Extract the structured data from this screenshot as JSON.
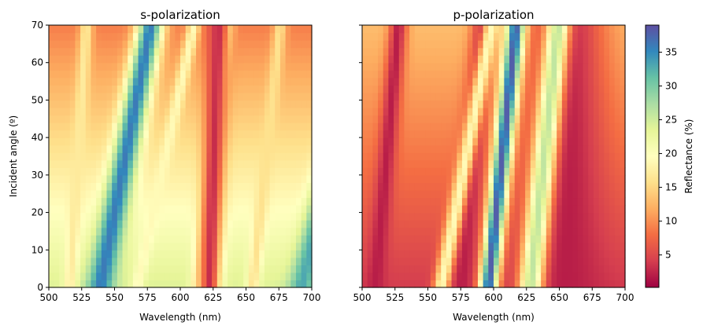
{
  "chart_data": [
    {
      "type": "heatmap",
      "title": "s-polarization",
      "xlabel": "Wavelength (nm)",
      "ylabel": "Incident angle (º)",
      "xlim": [
        500,
        700
      ],
      "ylim": [
        0,
        70
      ],
      "xticks": [
        500,
        525,
        550,
        575,
        600,
        625,
        650,
        675,
        700
      ],
      "yticks": [
        0,
        10,
        20,
        30,
        40,
        50,
        60,
        70
      ],
      "value_label": "Reflectance (%)",
      "bands": [
        {
          "kind": "valley",
          "lambda0": 516,
          "slope": 0.18,
          "value": 17,
          "width": 5
        },
        {
          "kind": "valley",
          "lambda0": 567,
          "slope": 0.62,
          "value": 19,
          "width": 5
        },
        {
          "kind": "valley",
          "lambda0": 612,
          "slope": 0.35,
          "value": 18,
          "width": 5
        },
        {
          "kind": "valley",
          "lambda0": 655,
          "slope": 0.3,
          "value": 16,
          "width": 5
        },
        {
          "kind": "peak",
          "lambda0": 539,
          "slope": 0.55,
          "value": 36,
          "width": 10
        },
        {
          "kind": "peak",
          "lambda0": 692,
          "slope": 0.7,
          "value": 33,
          "width": 10
        },
        {
          "kind": "peak",
          "lambda0": 622,
          "slope": 0.1,
          "value": 3,
          "width": 8
        }
      ],
      "base_value_low_angle": 24,
      "base_value_high_angle": 9
    },
    {
      "type": "heatmap",
      "title": "p-polarization",
      "xlabel": "Wavelength (nm)",
      "ylabel": "",
      "xlim": [
        500,
        700
      ],
      "ylim": [
        0,
        70
      ],
      "xticks": [
        500,
        525,
        550,
        575,
        600,
        625,
        650,
        675,
        700
      ],
      "yticks": [
        0,
        10,
        20,
        30,
        40,
        50,
        60,
        70
      ],
      "value_label": "Reflectance (%)",
      "bands": [
        {
          "kind": "valley",
          "lambda0": 510,
          "slope": 0.25,
          "value": 2,
          "width": 7
        },
        {
          "kind": "valley",
          "lambda0": 575,
          "slope": 0.25,
          "value": 2,
          "width": 9
        },
        {
          "kind": "valley",
          "lambda0": 655,
          "slope": 0.0,
          "value": 2,
          "width": 30
        },
        {
          "kind": "peak",
          "lambda0": 560,
          "slope": 0.55,
          "value": 19,
          "width": 6
        },
        {
          "kind": "peak",
          "lambda0": 596,
          "slope": 0.3,
          "value": 38,
          "width": 7
        },
        {
          "kind": "peak",
          "lambda0": 628,
          "slope": 0.3,
          "value": 26,
          "width": 9
        }
      ],
      "base_value_low_angle": 4,
      "base_value_high_angle": 13
    }
  ],
  "colorbar": {
    "label": "Reflectance (%)",
    "min": 0.2,
    "max": 39,
    "ticks": [
      5,
      10,
      15,
      20,
      25,
      30,
      35
    ],
    "colormap": "Spectral"
  },
  "colors": {
    "spectral": [
      "#9e0142",
      "#d53e4f",
      "#f46d43",
      "#fdae61",
      "#fee08b",
      "#ffffbf",
      "#e6f598",
      "#abdda4",
      "#66c2a5",
      "#3288bd",
      "#5e4fa2"
    ]
  }
}
